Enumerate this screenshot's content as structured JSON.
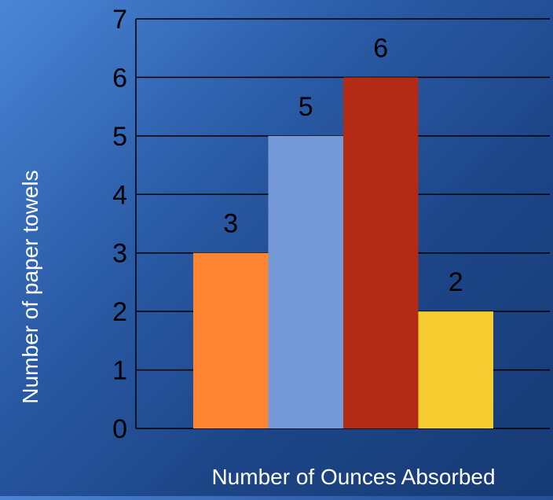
{
  "chart_data": {
    "type": "bar",
    "title": "",
    "xlabel": "Number of Ounces Absorbed",
    "ylabel": "Number of paper towels",
    "ylim": [
      0,
      7
    ],
    "yticks": [
      "0",
      "1",
      "2",
      "3",
      "4",
      "5",
      "6",
      "7"
    ],
    "grid": true,
    "legend": "none",
    "values": [
      3,
      5,
      6,
      2
    ],
    "data_labels": [
      "3",
      "5",
      "6",
      "2"
    ],
    "colors": [
      "#ff8533",
      "#7598d8",
      "#b32b14",
      "#f6cd30"
    ],
    "grid_color": "#000000",
    "text_color": "#000000",
    "axis_label_color": "#ffffff"
  }
}
